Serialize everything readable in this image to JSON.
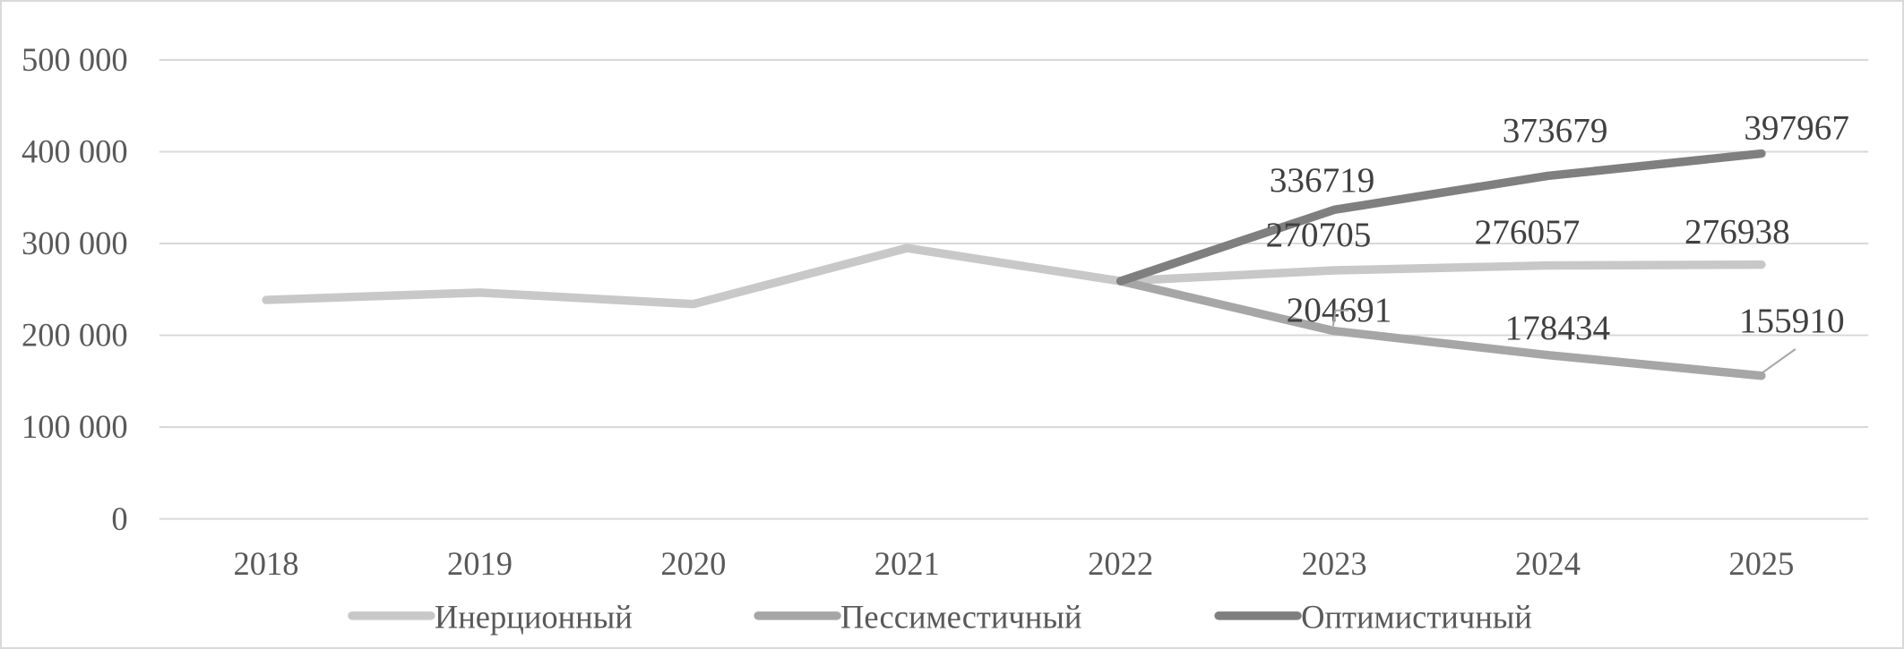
{
  "chart_data": {
    "type": "line",
    "categories": [
      "2018",
      "2019",
      "2020",
      "2021",
      "2022",
      "2023",
      "2024",
      "2025"
    ],
    "ylim": [
      0,
      500000
    ],
    "yticks": [
      0,
      100000,
      200000,
      300000,
      400000,
      500000
    ],
    "ytick_labels": [
      "0",
      "100 000",
      "200 000",
      "300 000",
      "400 000",
      "500 000"
    ],
    "grid": true,
    "legend_position": "bottom",
    "series": [
      {
        "name": "Инерционный",
        "color": "#c8c8c8",
        "values": [
          238500,
          246500,
          234000,
          295000,
          259000,
          270705,
          276057,
          276938
        ],
        "data_labels": [
          null,
          null,
          null,
          null,
          null,
          "270705",
          "276057",
          "276938"
        ]
      },
      {
        "name": "Пессиместичный",
        "color": "#a6a6a6",
        "values": [
          null,
          null,
          null,
          null,
          259000,
          204691,
          178434,
          155910
        ],
        "data_labels": [
          null,
          null,
          null,
          null,
          null,
          "204691",
          "178434",
          "155910"
        ]
      },
      {
        "name": "Оптимистичный",
        "color": "#7f7f7f",
        "values": [
          null,
          null,
          null,
          null,
          259000,
          336719,
          373679,
          397967
        ],
        "data_labels": [
          null,
          null,
          null,
          null,
          null,
          "336719",
          "373679",
          "397967"
        ]
      }
    ]
  }
}
